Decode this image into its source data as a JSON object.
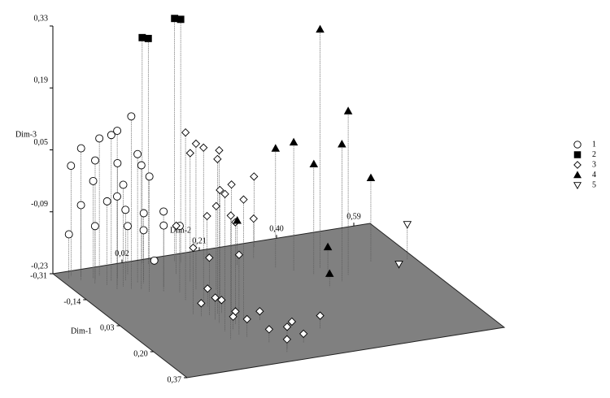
{
  "chart_data": {
    "type": "scatter3d",
    "xlabel": "Dim-1",
    "ylabel": "Dim-2",
    "zlabel": "Dim-3",
    "xlim": [
      -0.31,
      0.37
    ],
    "ylim": [
      -0.15,
      0.63
    ],
    "zlim": [
      -0.23,
      0.33
    ],
    "xticks": [
      {
        "value": -0.31,
        "label": "-0,31"
      },
      {
        "value": -0.14,
        "label": "-0,14"
      },
      {
        "value": 0.03,
        "label": "0,03"
      },
      {
        "value": 0.2,
        "label": "0,20"
      },
      {
        "value": 0.37,
        "label": "0,37"
      }
    ],
    "yticks": [
      {
        "value": 0.02,
        "label": "0,02"
      },
      {
        "value": 0.21,
        "label": "0,21"
      },
      {
        "value": 0.4,
        "label": "0,40"
      },
      {
        "value": 0.59,
        "label": "0,59"
      }
    ],
    "zticks": [
      {
        "value": -0.23,
        "label": "-0,23"
      },
      {
        "value": -0.09,
        "label": "-0,09"
      },
      {
        "value": 0.05,
        "label": "0,05"
      },
      {
        "value": 0.19,
        "label": "0,19"
      },
      {
        "value": 0.33,
        "label": "0,33"
      }
    ],
    "floor_color": "#808080",
    "legend": "right",
    "series": [
      {
        "name": "1",
        "marker": "circle",
        "color": "#ffffff",
        "x": [
          -0.28,
          -0.27,
          -0.25,
          -0.24,
          -0.22,
          -0.26,
          -0.2,
          -0.19,
          -0.18,
          -0.23,
          -0.21,
          -0.17,
          -0.16,
          -0.15,
          -0.24,
          -0.2,
          -0.13,
          -0.12,
          -0.27,
          -0.22,
          -0.18,
          -0.14,
          -0.1,
          -0.25,
          -0.19,
          -0.27
        ],
        "y": [
          -0.12,
          -0.1,
          -0.11,
          -0.08,
          -0.09,
          -0.06,
          -0.07,
          -0.05,
          -0.04,
          -0.03,
          -0.02,
          -0.06,
          -0.03,
          -0.01,
          0.0,
          0.02,
          0.0,
          0.03,
          -0.13,
          -0.05,
          0.01,
          0.04,
          0.06,
          -0.08,
          0.0,
          0.08
        ],
        "z": [
          0.02,
          0.06,
          -0.06,
          0.04,
          -0.1,
          0.08,
          -0.04,
          0.12,
          0.0,
          0.03,
          -0.07,
          -0.02,
          0.16,
          0.05,
          -0.12,
          -0.08,
          0.03,
          -0.05,
          -0.13,
          0.1,
          -0.11,
          -0.09,
          -0.08,
          -0.01,
          0.06,
          -0.22
        ]
      },
      {
        "name": "2",
        "marker": "square",
        "color": "#000000",
        "x": [
          -0.29,
          -0.28,
          -0.27,
          -0.26
        ],
        "y": [
          0.06,
          0.07,
          0.13,
          0.14
        ],
        "z": [
          0.28,
          0.28,
          0.32,
          0.32
        ]
      },
      {
        "name": "3",
        "marker": "diamond",
        "color": "#ffffff",
        "x": [
          -0.05,
          0.0,
          0.05,
          0.1,
          -0.1,
          0.15,
          0.2,
          -0.02,
          0.08,
          0.12,
          -0.08,
          0.18,
          0.03,
          -0.15,
          0.1,
          0.05,
          -0.2,
          -0.25,
          -0.22,
          -0.28,
          0.0,
          0.05,
          0.1,
          0.15,
          0.2,
          0.25,
          0.3,
          0.12,
          0.18,
          0.22,
          0.28,
          0.08,
          0.05,
          0.32
        ],
        "y": [
          0.05,
          0.07,
          0.08,
          0.06,
          0.1,
          0.05,
          0.04,
          0.12,
          0.1,
          0.09,
          0.14,
          0.07,
          0.03,
          0.11,
          0.12,
          0.06,
          0.1,
          0.2,
          0.3,
          0.33,
          0.08,
          0.09,
          0.1,
          0.07,
          0.08,
          0.11,
          0.13,
          0.15,
          0.2,
          0.25,
          0.18,
          0.06,
          0.04,
          0.12
        ],
        "z": [
          0.15,
          0.13,
          0.12,
          0.16,
          0.1,
          0.08,
          0.05,
          0.02,
          0.07,
          0.0,
          -0.04,
          -0.05,
          -0.08,
          0.06,
          0.04,
          -0.1,
          -0.12,
          -0.13,
          -0.14,
          -0.07,
          -0.19,
          -0.2,
          -0.21,
          -0.2,
          -0.19,
          -0.2,
          -0.18,
          -0.21,
          -0.22,
          -0.2,
          -0.21,
          -0.18,
          -0.2,
          -0.2
        ]
      },
      {
        "name": "4",
        "marker": "triangle",
        "color": "#000000",
        "x": [
          -0.11,
          -0.05,
          -0.02,
          -0.12,
          -0.15,
          -0.08,
          -0.1,
          -0.2,
          -0.05,
          0.0
        ],
        "y": [
          0.41,
          0.45,
          0.42,
          0.35,
          0.32,
          0.38,
          0.53,
          0.25,
          0.4,
          0.38
        ],
        "z": [
          0.31,
          0.14,
          0.08,
          0.06,
          0.04,
          0.02,
          -0.04,
          -0.13,
          -0.16,
          -0.2
        ]
      },
      {
        "name": "5",
        "marker": "triangle-down",
        "color": "#ffffff",
        "x": [
          -0.08,
          -0.04
        ],
        "y": [
          0.61,
          0.57
        ],
        "z": [
          -0.15,
          -0.22
        ]
      }
    ]
  }
}
